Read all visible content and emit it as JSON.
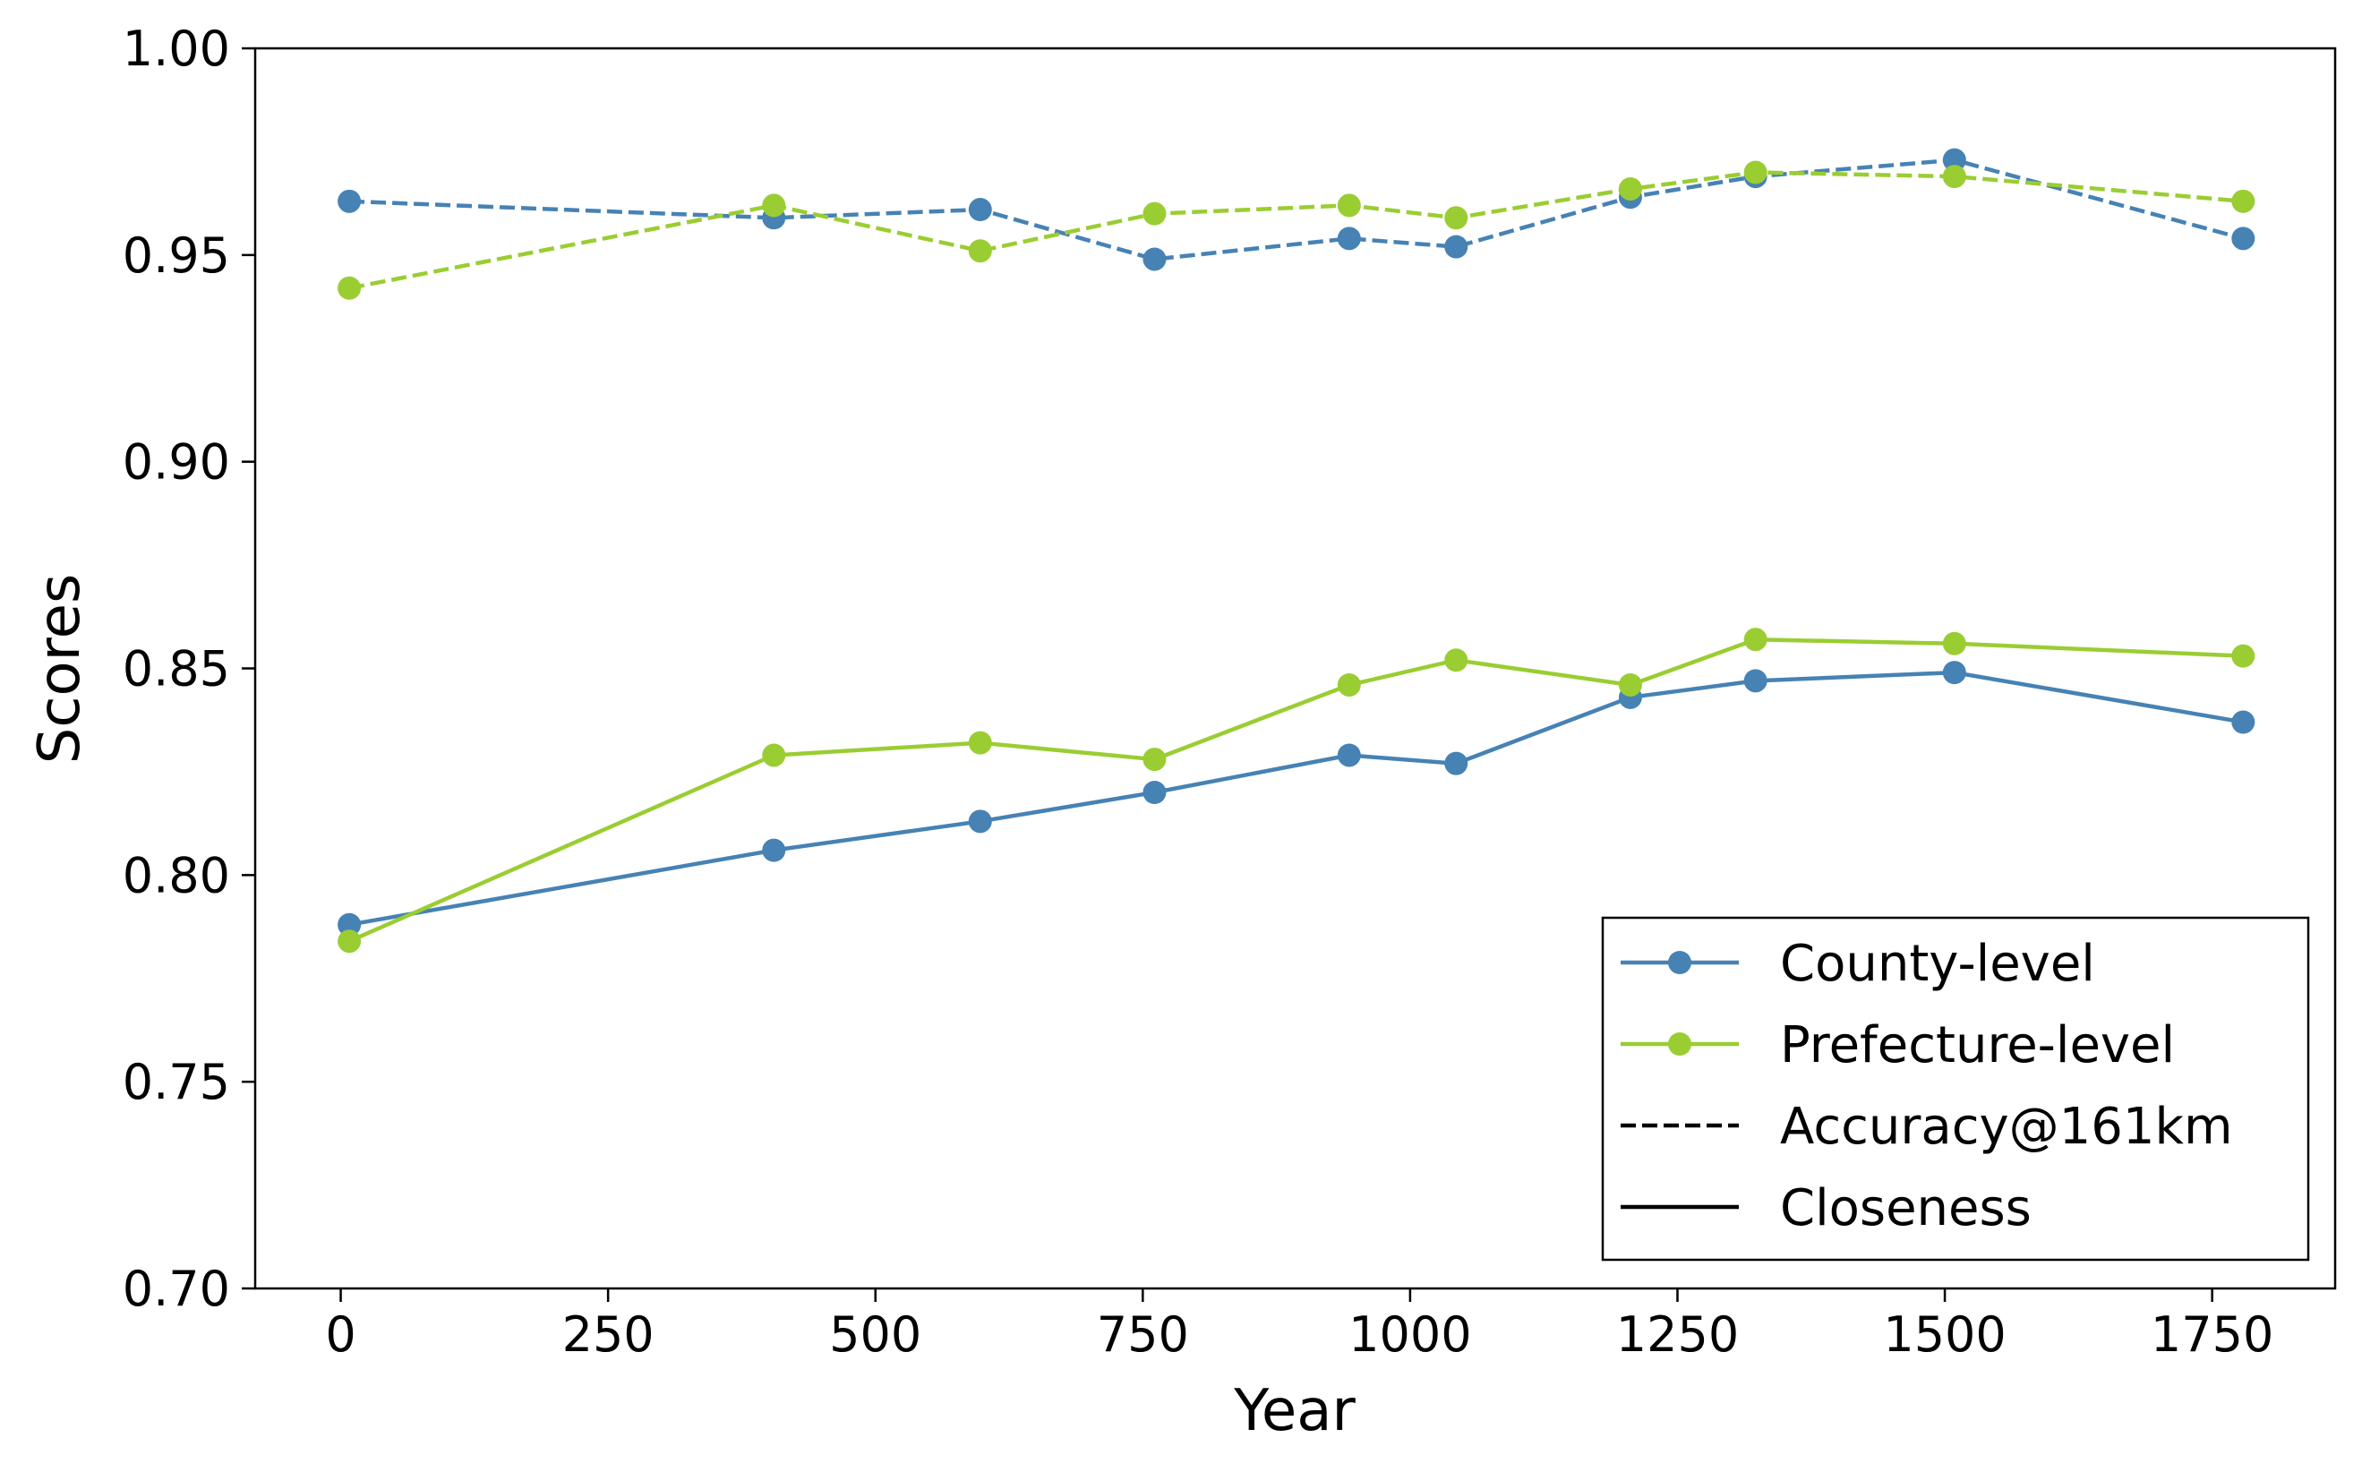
{
  "chart_data": {
    "type": "line",
    "xlabel": "Year",
    "ylabel": "Scores",
    "xlim": [
      -80,
      1865
    ],
    "ylim": [
      0.7,
      1.0
    ],
    "xticks": [
      0,
      250,
      500,
      750,
      1000,
      1250,
      1500,
      1750
    ],
    "xtick_labels": [
      "0",
      "250",
      "500",
      "750",
      "1000",
      "1250",
      "1500",
      "1750"
    ],
    "yticks": [
      0.7,
      0.75,
      0.8,
      0.85,
      0.9,
      0.95,
      1.0
    ],
    "ytick_labels": [
      "0.70",
      "0.75",
      "0.80",
      "0.85",
      "0.90",
      "0.95",
      "1.00"
    ],
    "grid": false,
    "legend_position": "bottom-right",
    "x": [
      8,
      405,
      598,
      761,
      943,
      1043,
      1206,
      1323,
      1509,
      1779
    ],
    "series": [
      {
        "name": "County-level",
        "metric": "Accuracy@161km",
        "color": "#4682b4",
        "style": "dashed",
        "values": [
          0.963,
          0.959,
          0.961,
          0.949,
          0.954,
          0.952,
          0.964,
          0.969,
          0.973,
          0.954
        ]
      },
      {
        "name": "Prefecture-level",
        "metric": "Accuracy@161km",
        "color": "#9acd32",
        "style": "dashed",
        "values": [
          0.942,
          0.962,
          0.951,
          0.96,
          0.962,
          0.959,
          0.966,
          0.97,
          0.969,
          0.963
        ]
      },
      {
        "name": "County-level",
        "metric": "Closeness",
        "color": "#4682b4",
        "style": "solid",
        "values": [
          0.788,
          0.806,
          0.813,
          0.82,
          0.829,
          0.827,
          0.843,
          0.847,
          0.849,
          0.837
        ]
      },
      {
        "name": "Prefecture-level",
        "metric": "Closeness",
        "color": "#9acd32",
        "style": "solid",
        "values": [
          0.784,
          0.829,
          0.832,
          0.828,
          0.846,
          0.852,
          0.846,
          0.857,
          0.856,
          0.853
        ]
      }
    ],
    "legend": [
      {
        "label": "County-level",
        "color": "#4682b4",
        "style": "solid",
        "marker": true
      },
      {
        "label": "Prefecture-level",
        "color": "#9acd32",
        "style": "solid",
        "marker": true
      },
      {
        "label": "Accuracy@161km",
        "color": "#000000",
        "style": "dashed",
        "marker": false
      },
      {
        "label": "Closeness",
        "color": "#000000",
        "style": "solid",
        "marker": false
      }
    ]
  }
}
